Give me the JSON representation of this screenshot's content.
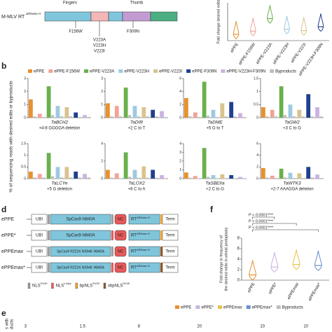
{
  "panels": {
    "b": "b",
    "d": "d",
    "f": "f",
    "e": "e"
  },
  "schematic": {
    "label": "M-MLV RT",
    "superscript": "ΔRNase H",
    "domains": [
      "Fingers",
      "Thumb"
    ],
    "mutations": [
      "F156W",
      "V223A",
      "V223H",
      "V223I",
      "F309N"
    ]
  },
  "legend": [
    {
      "name": "ePPE",
      "color": "#e8912d"
    },
    {
      "name": "ePPE-F156W",
      "color": "#f0a39a"
    },
    {
      "name": "ePPE-V223A",
      "color": "#6ab04c"
    },
    {
      "name": "ePPE-V223H",
      "color": "#9ecae1"
    },
    {
      "name": "ePPE-V223I",
      "color": "#d9c38f"
    },
    {
      "name": "ePPE-F309N",
      "color": "#1f3f8f"
    },
    {
      "name": "ePPE-V223H-F309N",
      "color": "#c9b3e0"
    },
    {
      "name": "Byproducts",
      "color": "#bdbdbd"
    }
  ],
  "b_ylabel": "% of sequencing reads with desired edits or byproducts",
  "chart_data": [
    {
      "type": "violin",
      "ylabel": "Fold change desired edits",
      "categories": [
        "ePPE",
        "ePPE-F156W",
        "ePPE-V223A",
        "ePPE-V223H",
        "ePPE-V223I",
        "ePPE-V223H-F309N"
      ],
      "colors": [
        "#e8912d",
        "#f0a39a",
        "#6ab04c",
        "#9ecae1",
        "#d9c38f",
        "#1f3f8f"
      ],
      "values": [
        1,
        1.5,
        3.5,
        1.8,
        1.6,
        2.2
      ],
      "ylim": [
        0,
        6
      ]
    },
    {
      "type": "bar",
      "title": "TaBCH2",
      "subtitle": "+4-8 GGGGA deletion",
      "categories": [
        null,
        null,
        null,
        null,
        null,
        null,
        null
      ],
      "values": [
        1.4,
        0.3,
        2.4,
        0.9,
        0.8,
        0.4,
        0.2
      ],
      "byproducts": [
        0.1,
        0.05,
        0.2,
        0.1,
        0.1,
        0.05,
        0.05
      ],
      "ylim": [
        0,
        3
      ],
      "yticks": [
        0,
        1,
        2,
        3
      ]
    },
    {
      "type": "bar",
      "title": "TaDIR",
      "subtitle": "+2 C to T",
      "categories": [
        null,
        null,
        null,
        null,
        null,
        null,
        null
      ],
      "values": [
        1.1,
        0.9,
        2.3,
        0.9,
        0.8,
        0.6,
        0.5
      ],
      "byproducts": [
        0.1,
        0.1,
        0.2,
        0.1,
        0.1,
        0.1,
        0.05
      ],
      "ylim": [
        0,
        3
      ],
      "yticks": [
        0,
        1,
        2,
        3
      ]
    },
    {
      "type": "bar",
      "title": "TaDME",
      "subtitle": "+5 G to T",
      "categories": [
        null,
        null,
        null,
        null,
        null,
        null,
        null
      ],
      "values": [
        3,
        0.8,
        5.5,
        1.2,
        2.2,
        2.4,
        0.7
      ],
      "byproducts": [
        0.2,
        0.1,
        0.3,
        0.1,
        0.2,
        0.2,
        0.1
      ],
      "ylim": [
        0,
        6
      ],
      "yticks": [
        0,
        2,
        4,
        6
      ]
    },
    {
      "type": "bar",
      "title": "TaGW2",
      "subtitle": "+3 C to G",
      "categories": [
        null,
        null,
        null,
        null,
        null,
        null,
        null
      ],
      "values": [
        0.4,
        0.3,
        1.2,
        0.5,
        0.3,
        0.9,
        0.4
      ],
      "byproducts": [
        0.05,
        0.05,
        0.1,
        0.05,
        0.05,
        0.05,
        0.05
      ],
      "ylim": [
        0,
        1.5
      ],
      "yticks": [
        0,
        0.5,
        1,
        1.5
      ]
    },
    {
      "type": "bar",
      "title": "TaLCYe",
      "subtitle": "+5 G deletion",
      "categories": [
        null,
        null,
        null,
        null,
        null,
        null,
        null
      ],
      "values": [
        0.3,
        0.2,
        1.1,
        0.5,
        0.5,
        0.3,
        0.2
      ],
      "byproducts": [
        0.05,
        0.05,
        0.1,
        0.05,
        0.05,
        0.05,
        0.05
      ],
      "ylim": [
        0,
        1.5
      ],
      "yticks": [
        0,
        0.5,
        1,
        1.5
      ]
    },
    {
      "type": "bar",
      "title": "TaLOX2",
      "subtitle": "+8 C to A",
      "categories": [
        null,
        null,
        null,
        null,
        null,
        null,
        null
      ],
      "values": [
        1,
        0.6,
        3,
        1,
        1.4,
        1,
        0.4
      ],
      "byproducts": [
        0.1,
        0.05,
        0.2,
        0.1,
        0.1,
        0.1,
        0.05
      ],
      "ylim": [
        0,
        4
      ],
      "yticks": [
        0,
        2,
        4
      ]
    },
    {
      "type": "bar",
      "title": "TaSBEIIa",
      "subtitle": "+2 C to G",
      "categories": [
        null,
        null,
        null,
        null,
        null,
        null,
        null
      ],
      "values": [
        0.7,
        0.3,
        3.5,
        0.4,
        0.5,
        0.4,
        0.2
      ],
      "byproducts": [
        0.1,
        0.05,
        0.2,
        0.05,
        0.05,
        0.05,
        0.05
      ],
      "ylim": [
        0,
        4
      ],
      "yticks": [
        0,
        1,
        2,
        3,
        4
      ]
    },
    {
      "type": "bar",
      "title": "TaWTK3",
      "subtitle": "+2-7 AAAGGA deletion",
      "categories": [
        null,
        null,
        null,
        null,
        null,
        null,
        null
      ],
      "values": [
        1.8,
        0.5,
        1.7,
        1,
        0.9,
        2,
        0.7
      ],
      "byproducts": [
        0.2,
        0.1,
        0.2,
        0.1,
        0.1,
        0.2,
        0.1
      ],
      "ylim": [
        0,
        6
      ],
      "yticks": [
        0,
        2,
        4,
        6
      ]
    },
    {
      "type": "violin",
      "ylabel": [
        "Fold change in frequency of",
        "the desired edits in wheat protoplasts"
      ],
      "categories": [
        "ePPE",
        "ePPE*",
        "ePPEmax",
        "ePPEmax*"
      ],
      "colors": [
        "#e8912d",
        "#c9b3e0",
        "#e8c24a",
        "#6a8fd0"
      ],
      "values": [
        1,
        2.5,
        3,
        2.8
      ],
      "ylim": [
        0,
        8
      ],
      "yticks": [
        0,
        2,
        4,
        6,
        8
      ],
      "annotations": [
        "P < 0.0001****",
        "P < 0.0001****",
        "P < 0.0001****"
      ]
    }
  ],
  "constructs": [
    {
      "name": "ePPE",
      "parts": [
        "UBI",
        "SpCas9 H840A",
        "NC",
        "RT",
        "Term"
      ]
    },
    {
      "name": "ePPE*",
      "parts": [
        "UBI",
        "SpCas9 H840A",
        "NC",
        "RT",
        "Term"
      ]
    },
    {
      "name": "ePPEmax",
      "parts": [
        "UBI",
        "SpCas9 R221K N394K H840A",
        "NC",
        "RT",
        "Term"
      ]
    },
    {
      "name": "ePPEmax*",
      "parts": [
        "UBI",
        "SpCas9 R221K N394K H840A",
        "NC",
        "RT",
        "Term"
      ]
    }
  ],
  "rt_superscript": "ΔRNase H",
  "nls": [
    {
      "name": "NLS",
      "sup": "SV40",
      "color": "#9e9e9e"
    },
    {
      "name": "NLS",
      "sup": "c-Myc",
      "color": "#e8595a"
    },
    {
      "name": "bpNLS",
      "sup": "SV40",
      "color": "#e8a23a"
    },
    {
      "name": "vbpNLS",
      "sup": "SV40",
      "color": "#8b5a2b"
    }
  ],
  "e_legend": [
    {
      "name": "ePPE",
      "color": "#e8912d"
    },
    {
      "name": "ePPE*",
      "color": "#c9b3e0"
    },
    {
      "name": "ePPEmax",
      "color": "#e8c24a"
    },
    {
      "name": "ePPEmax*",
      "color": "#6a8fd0"
    },
    {
      "name": "Byproducts",
      "color": "#bdbdbd"
    }
  ],
  "e_ylabel": [
    "s with",
    "ducts"
  ],
  "e_ticks": [
    "3",
    "1.5",
    "8",
    "20",
    "10",
    "10"
  ]
}
